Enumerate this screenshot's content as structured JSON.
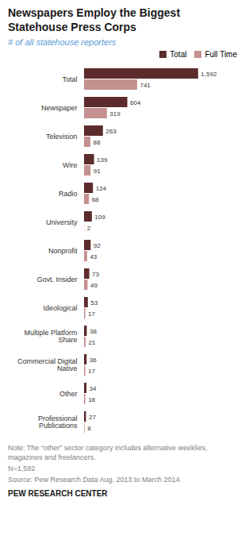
{
  "chart_data": {
    "type": "bar",
    "orientation": "horizontal",
    "title": "Newspapers Employ the Biggest\nStatehouse Press Corps",
    "subtitle": "# of all statehouse reporters",
    "categories": [
      "Total",
      "Newspaper",
      "Television",
      "Wire",
      "Radio",
      "University",
      "Nonprofit",
      "Govt. Insider",
      "Ideological",
      "Multiple Platform\nShare",
      "Commercial Digital\nNative",
      "Other",
      "Professional\nPublications"
    ],
    "series": [
      {
        "name": "Total",
        "color": "#5c2b2b",
        "values": [
          1592,
          604,
          263,
          139,
          124,
          109,
          92,
          73,
          53,
          38,
          36,
          34,
          27
        ],
        "value_labels": [
          "1,592",
          "604",
          "263",
          "139",
          "124",
          "109",
          "92",
          "73",
          "53",
          "38",
          "36",
          "34",
          "27"
        ]
      },
      {
        "name": "Full Time",
        "color": "#c49090",
        "values": [
          741,
          319,
          88,
          91,
          68,
          2,
          43,
          49,
          17,
          21,
          17,
          18,
          8
        ],
        "value_labels": [
          "741",
          "319",
          "88",
          "91",
          "68",
          "2",
          "43",
          "49",
          "17",
          "21",
          "17",
          "18",
          "8"
        ]
      }
    ],
    "xlim": [
      0,
      2069.6
    ],
    "tick_labels": "y",
    "grid": false,
    "legend": "upper right",
    "data_labels": true,
    "annotations": [
      "Note: The “other” sector category includes alternative weeklies,\nmagazines and freelancers.",
      "N=1,592",
      "Source: Pew Research Data Aug. 2013 to March 2014.",
      "PEW RESEARCH CENTER"
    ]
  }
}
